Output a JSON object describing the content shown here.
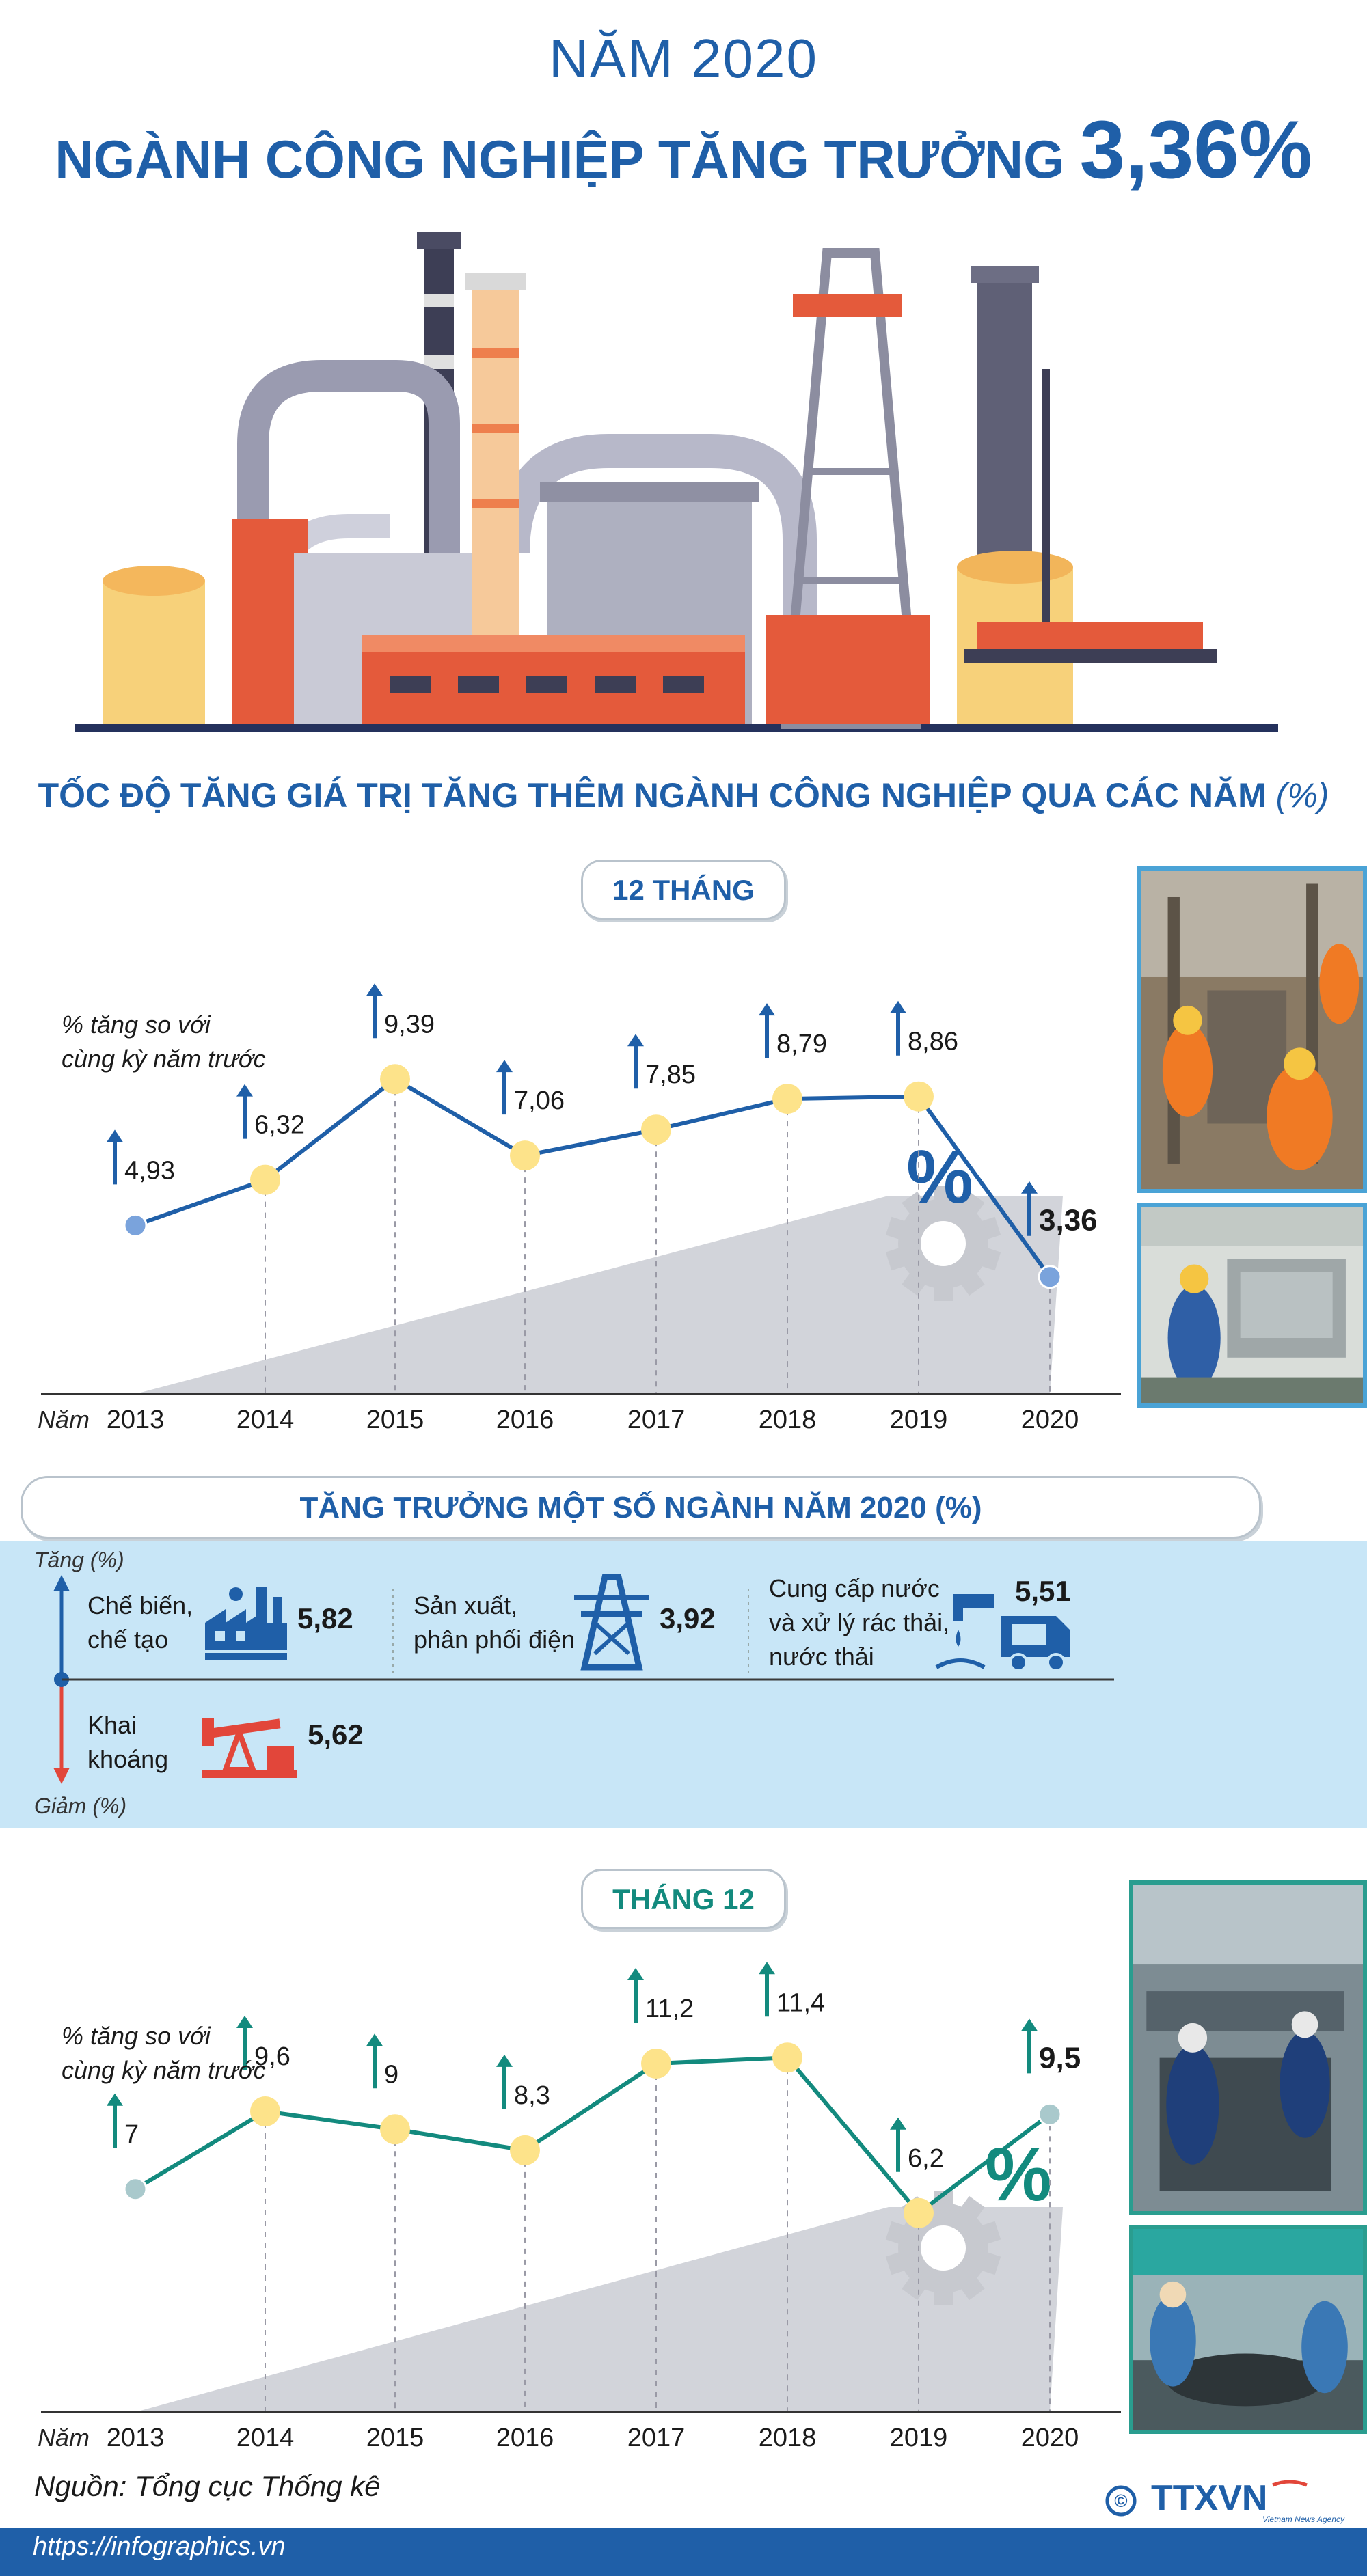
{
  "header": {
    "year_line": "NĂM 2020",
    "headline_prefix": "NGÀNH CÔNG NGHIỆP TĂNG TRƯỞNG",
    "headline_value": "3,36%"
  },
  "subtitle": {
    "text": "TỐC ĐỘ TĂNG GIÁ TRỊ TĂNG THÊM NGÀNH CÔNG NGHIỆP QUA CÁC NĂM",
    "unit": "(%)"
  },
  "legend": {
    "line1": "% tăng so với",
    "line2": "cùng kỳ năm trước"
  },
  "x_axis_label": "Năm",
  "chart_data": [
    {
      "type": "line",
      "title": "12 THÁNG",
      "xlabel": "Năm",
      "categories": [
        "2013",
        "2014",
        "2015",
        "2016",
        "2017",
        "2018",
        "2019",
        "2020"
      ],
      "values": [
        4.93,
        6.32,
        9.39,
        7.06,
        7.85,
        8.79,
        8.86,
        3.36
      ],
      "value_labels": [
        "4,93",
        "6,32",
        "9,39",
        "7,06",
        "7,85",
        "8,79",
        "8,86",
        "3,36"
      ],
      "ylim": [
        0,
        10
      ],
      "color": "#1f5fa8"
    },
    {
      "type": "bar",
      "title": "TĂNG TRƯỞNG MỘT SỐ NGÀNH NĂM 2020 (%)",
      "categories": [
        "Chế biến, chế tạo",
        "Sản xuất, phân phối điện",
        "Cung cấp nước và xử lý rác thải, nước thải",
        "Khai khoáng"
      ],
      "values": [
        5.82,
        3.92,
        5.51,
        -5.62
      ],
      "value_labels": [
        "5,82",
        "3,92",
        "5,51",
        "5,62"
      ],
      "up_label": "Tăng (%)",
      "down_label": "Giảm (%)"
    },
    {
      "type": "line",
      "title": "THÁNG 12",
      "xlabel": "Năm",
      "categories": [
        "2013",
        "2014",
        "2015",
        "2016",
        "2017",
        "2018",
        "2019",
        "2020"
      ],
      "values": [
        7,
        9.6,
        9,
        8.3,
        11.2,
        11.4,
        6.2,
        9.5
      ],
      "value_labels": [
        "7",
        "9,6",
        "9",
        "8,3",
        "11,2",
        "11,4",
        "6,2",
        "9,5"
      ],
      "ylim": [
        0,
        12
      ],
      "color": "#138a7e"
    }
  ],
  "sectors": {
    "up_label": "Tăng (%)",
    "down_label": "Giảm (%)",
    "items": [
      {
        "line1": "Chế biến,",
        "line2": "chế tạo",
        "value": "5,82",
        "icon": "factory-icon"
      },
      {
        "line1": "Sản xuất,",
        "line2": "phân phối điện",
        "value": "3,92",
        "icon": "power-tower-icon"
      },
      {
        "line1": "Cung cấp nước",
        "line2": "và xử lý rác thải,",
        "line3": "nước thải",
        "value": "5,51",
        "icon": "water-truck-icon"
      },
      {
        "line1": "Khai",
        "line2": "khoáng",
        "value": "5,62",
        "icon": "oil-pump-icon"
      }
    ]
  },
  "source": "Nguồn: Tổng cục Thống kê",
  "footer": {
    "url": "https://infographics.vn",
    "brand": "TTXVN",
    "brand_sub": "Vietnam News Agency",
    "copyright": "©"
  },
  "colors": {
    "primary": "#1f5fa8",
    "teal": "#138a7e",
    "point": "#fde38a",
    "red": "#e2463a"
  }
}
